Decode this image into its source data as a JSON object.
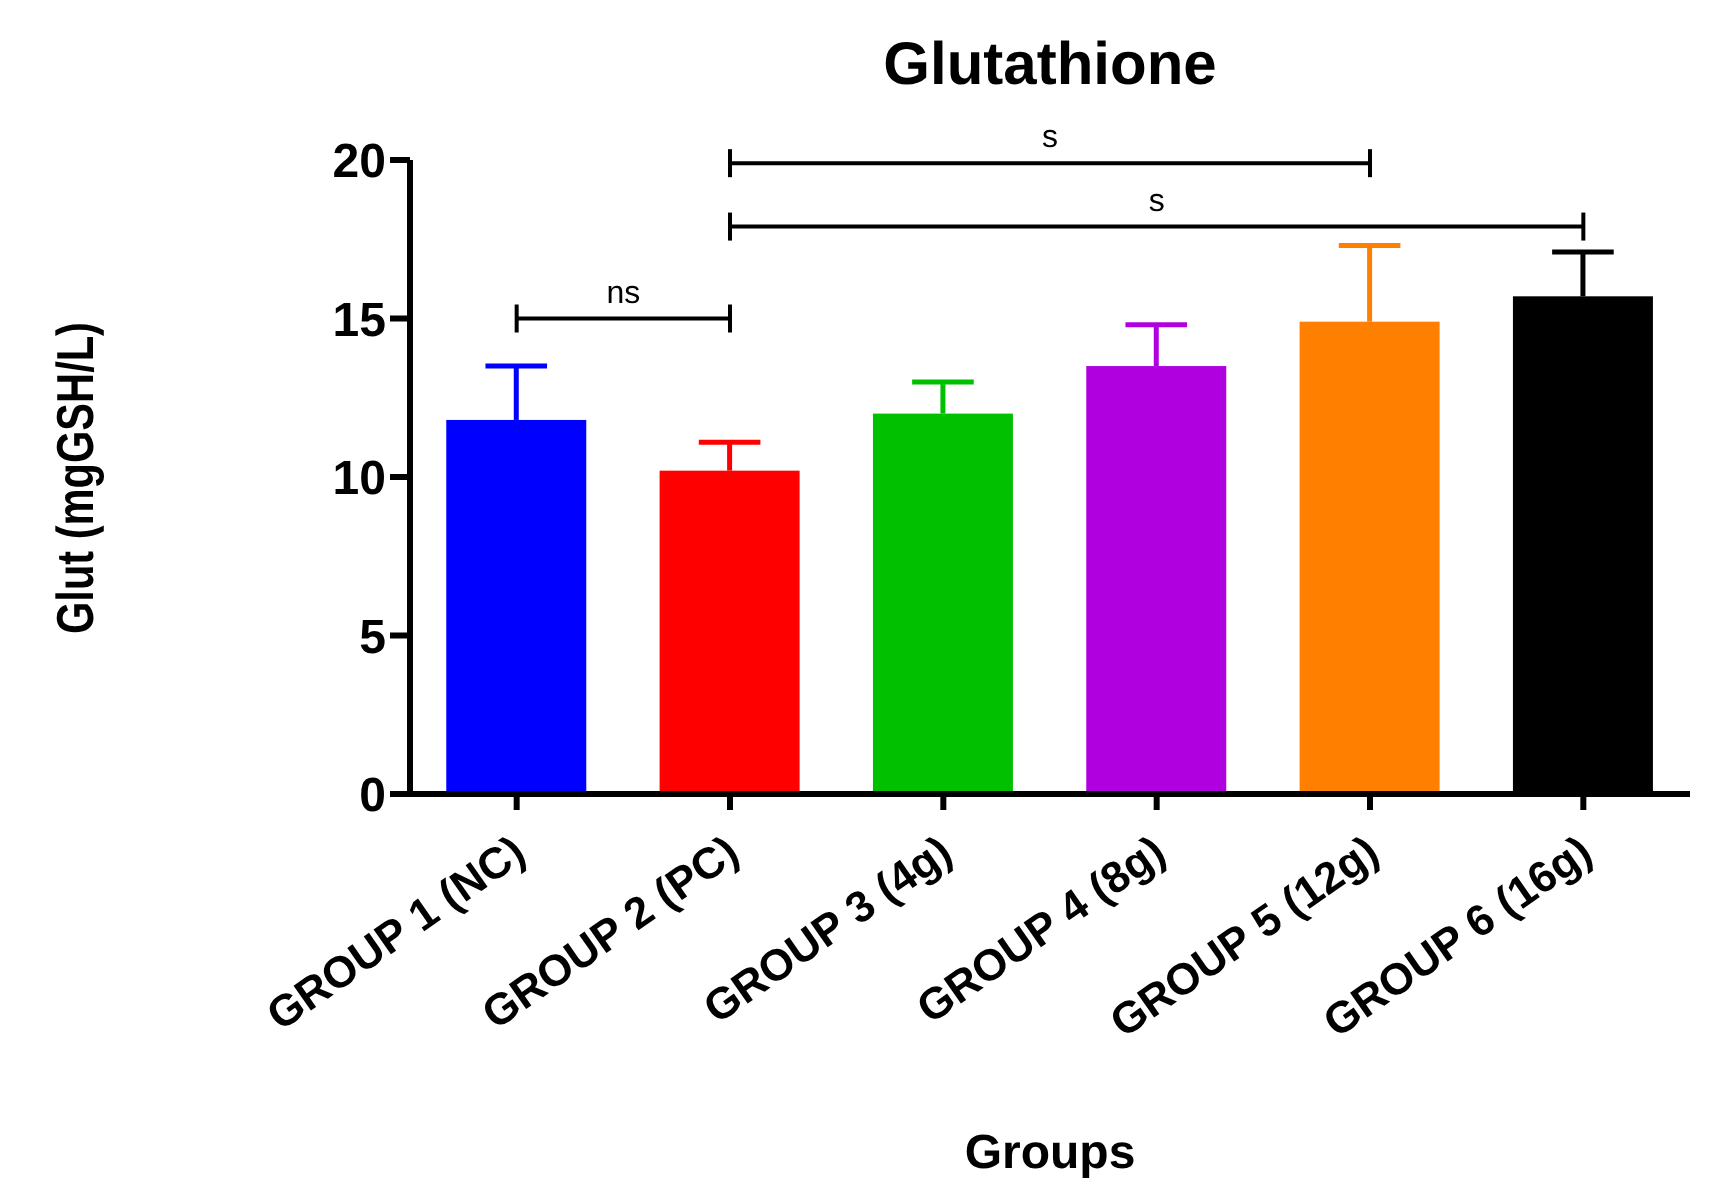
{
  "chart_data": {
    "type": "bar",
    "title": "Glutathione",
    "xlabel": "Groups",
    "ylabel": "Glut (mgGSH/L)",
    "categories": [
      "GROUP 1 (NC)",
      "GROUP 2 (PC)",
      "GROUP 3 (4g)",
      "GROUP 4 (8g)",
      "GROUP 5 (12g)",
      "GROUP 6 (16g)"
    ],
    "values": [
      11.8,
      10.2,
      12.0,
      13.5,
      14.9,
      15.7
    ],
    "errors": [
      [
        11.8,
        13.5
      ],
      [
        10.2,
        11.1
      ],
      [
        12.0,
        13.0
      ],
      [
        13.5,
        14.8
      ],
      [
        14.9,
        17.3
      ],
      [
        15.7,
        17.1
      ]
    ],
    "colors": [
      "#0000ff",
      "#ff0000",
      "#00c000",
      "#b000e0",
      "#ff8000",
      "#000000"
    ],
    "ylim": [
      0,
      20
    ],
    "yticks": [
      0,
      5,
      10,
      15,
      20
    ],
    "grid": false,
    "legend": false,
    "annotations": [
      "ns",
      "s",
      "s"
    ]
  }
}
